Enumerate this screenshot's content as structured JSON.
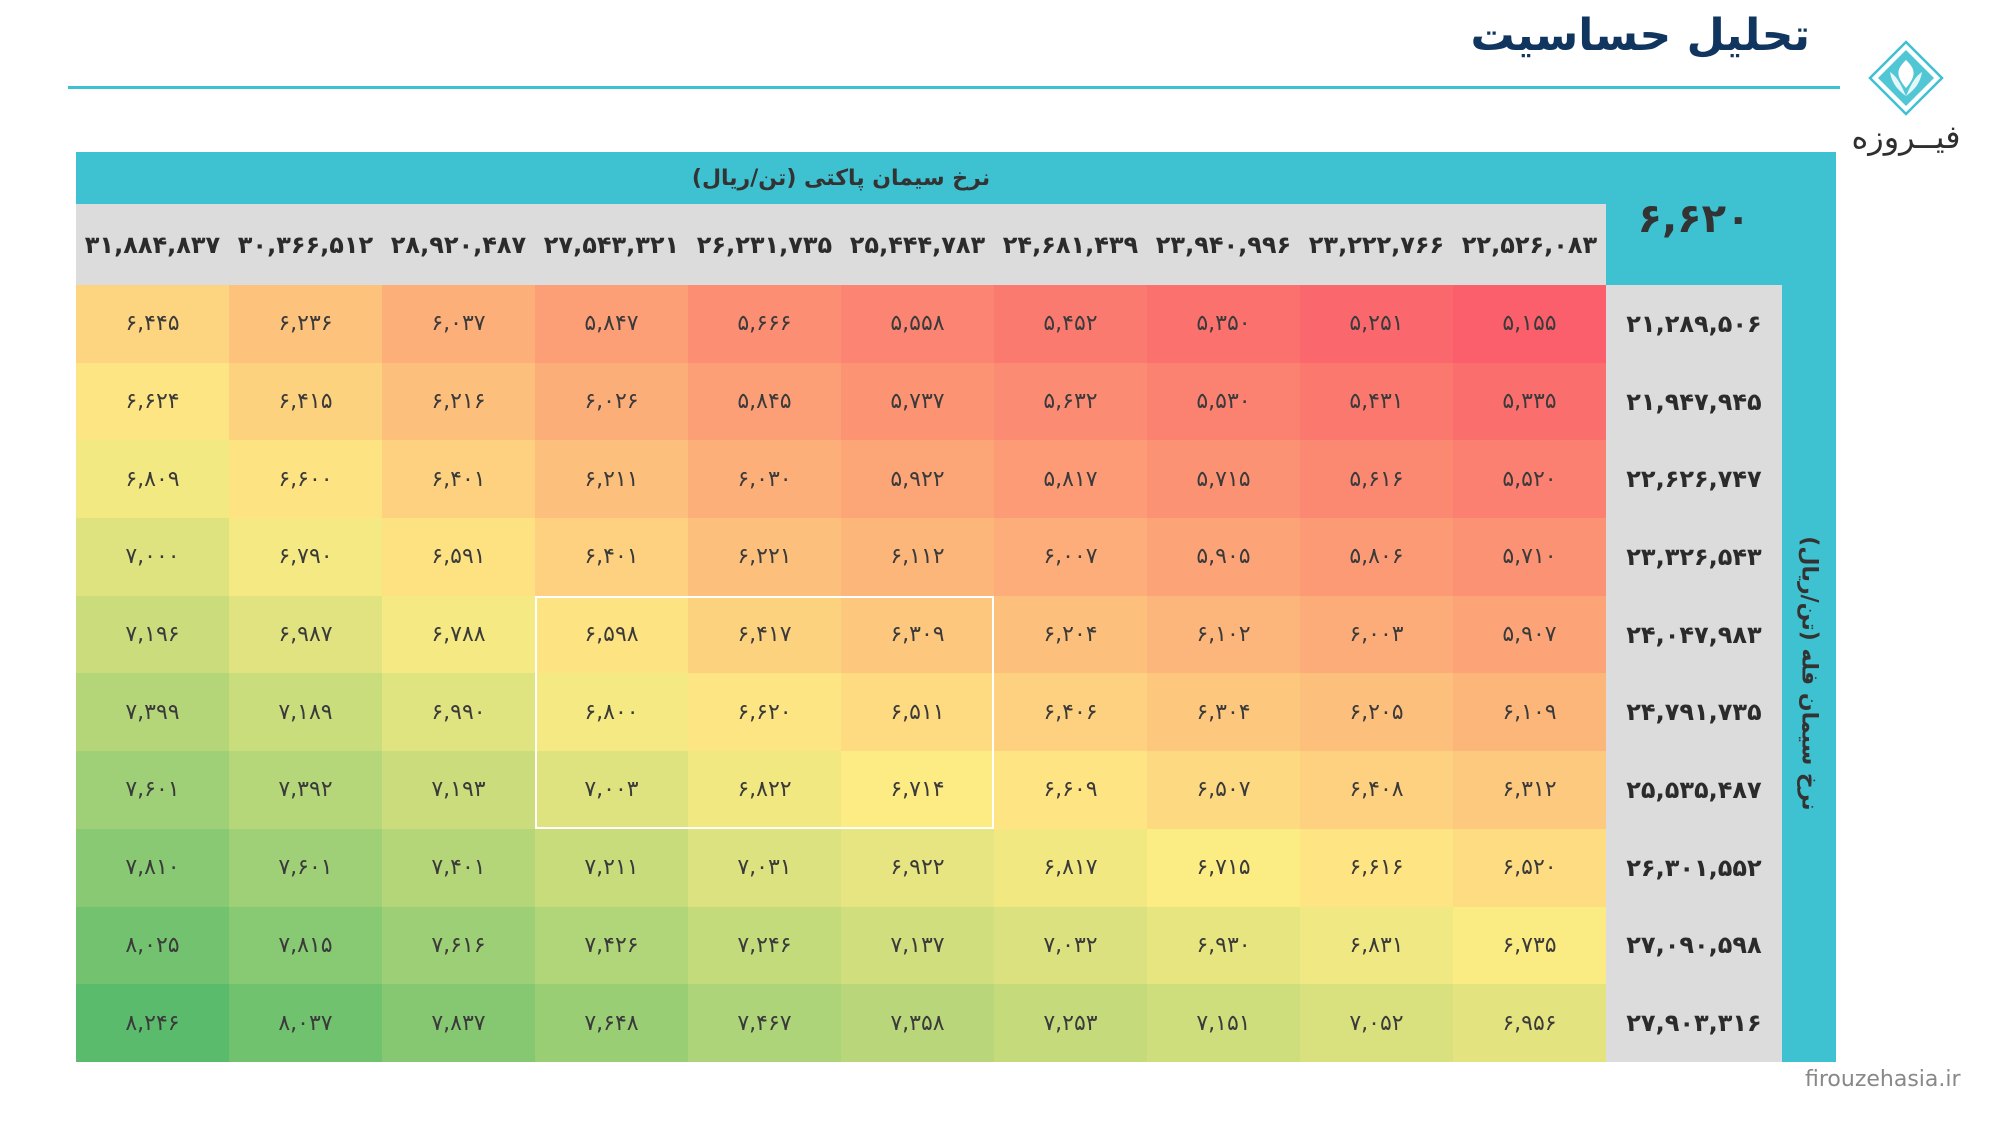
{
  "title": "تحلیل حساسیت",
  "logo": {
    "text": "فیــروزه"
  },
  "footer": {
    "url": "firouzehasia.ir"
  },
  "colors": {
    "accent": "#3ec1d0",
    "title": "#10355e",
    "header_bg": "#dcdcdc",
    "heat_low": "#fa5f6b",
    "heat_mid": "#feec84",
    "heat_high": "#5bbb6c"
  },
  "table": {
    "column_axis_label": "نرخ سیمان پاکتی (تن/ریال)",
    "row_axis_label": "نرخ سیمان فله (تن/ریال)",
    "corner_value": "۶,۶۲۰",
    "column_headers": [
      "۳۱,۸۸۴,۸۳۷",
      "۳۰,۳۶۶,۵۱۲",
      "۲۸,۹۲۰,۴۸۷",
      "۲۷,۵۴۳,۳۲۱",
      "۲۶,۲۳۱,۷۳۵",
      "۲۵,۴۴۴,۷۸۳",
      "۲۴,۶۸۱,۴۳۹",
      "۲۳,۹۴۰,۹۹۶",
      "۲۳,۲۲۲,۷۶۶",
      "۲۲,۵۲۶,۰۸۳"
    ],
    "row_headers": [
      "۲۱,۲۸۹,۵۰۶",
      "۲۱,۹۴۷,۹۴۵",
      "۲۲,۶۲۶,۷۴۷",
      "۲۳,۳۲۶,۵۴۳",
      "۲۴,۰۴۷,۹۸۳",
      "۲۴,۷۹۱,۷۳۵",
      "۲۵,۵۳۵,۴۸۷",
      "۲۶,۳۰۱,۵۵۲",
      "۲۷,۰۹۰,۵۹۸",
      "۲۷,۹۰۳,۳۱۶"
    ],
    "rows": [
      [
        "۶,۴۴۵",
        "۶,۲۳۶",
        "۶,۰۳۷",
        "۵,۸۴۷",
        "۵,۶۶۶",
        "۵,۵۵۸",
        "۵,۴۵۲",
        "۵,۳۵۰",
        "۵,۲۵۱",
        "۵,۱۵۵"
      ],
      [
        "۶,۶۲۴",
        "۶,۴۱۵",
        "۶,۲۱۶",
        "۶,۰۲۶",
        "۵,۸۴۵",
        "۵,۷۳۷",
        "۵,۶۳۲",
        "۵,۵۳۰",
        "۵,۴۳۱",
        "۵,۳۳۵"
      ],
      [
        "۶,۸۰۹",
        "۶,۶۰۰",
        "۶,۴۰۱",
        "۶,۲۱۱",
        "۶,۰۳۰",
        "۵,۹۲۲",
        "۵,۸۱۷",
        "۵,۷۱۵",
        "۵,۶۱۶",
        "۵,۵۲۰"
      ],
      [
        "۷,۰۰۰",
        "۶,۷۹۰",
        "۶,۵۹۱",
        "۶,۴۰۱",
        "۶,۲۲۱",
        "۶,۱۱۲",
        "۶,۰۰۷",
        "۵,۹۰۵",
        "۵,۸۰۶",
        "۵,۷۱۰"
      ],
      [
        "۷,۱۹۶",
        "۶,۹۸۷",
        "۶,۷۸۸",
        "۶,۵۹۸",
        "۶,۴۱۷",
        "۶,۳۰۹",
        "۶,۲۰۴",
        "۶,۱۰۲",
        "۶,۰۰۳",
        "۵,۹۰۷"
      ],
      [
        "۷,۳۹۹",
        "۷,۱۸۹",
        "۶,۹۹۰",
        "۶,۸۰۰",
        "۶,۶۲۰",
        "۶,۵۱۱",
        "۶,۴۰۶",
        "۶,۳۰۴",
        "۶,۲۰۵",
        "۶,۱۰۹"
      ],
      [
        "۷,۶۰۱",
        "۷,۳۹۲",
        "۷,۱۹۳",
        "۷,۰۰۳",
        "۶,۸۲۲",
        "۶,۷۱۴",
        "۶,۶۰۹",
        "۶,۵۰۷",
        "۶,۴۰۸",
        "۶,۳۱۲"
      ],
      [
        "۷,۸۱۰",
        "۷,۶۰۱",
        "۷,۴۰۱",
        "۷,۲۱۱",
        "۷,۰۳۱",
        "۶,۹۲۲",
        "۶,۸۱۷",
        "۶,۷۱۵",
        "۶,۶۱۶",
        "۶,۵۲۰"
      ],
      [
        "۸,۰۲۵",
        "۷,۸۱۵",
        "۷,۶۱۶",
        "۷,۴۲۶",
        "۷,۲۴۶",
        "۷,۱۳۷",
        "۷,۰۳۲",
        "۶,۹۳۰",
        "۶,۸۳۱",
        "۶,۷۳۵"
      ],
      [
        "۸,۲۴۶",
        "۸,۰۳۷",
        "۷,۸۳۷",
        "۷,۶۴۸",
        "۷,۴۶۷",
        "۷,۳۵۸",
        "۷,۲۵۳",
        "۷,۱۵۱",
        "۷,۰۵۲",
        "۶,۹۵۶"
      ]
    ],
    "highlight_range": {
      "row_start": 4,
      "row_end": 6,
      "col_start": 3,
      "col_end": 5
    }
  }
}
